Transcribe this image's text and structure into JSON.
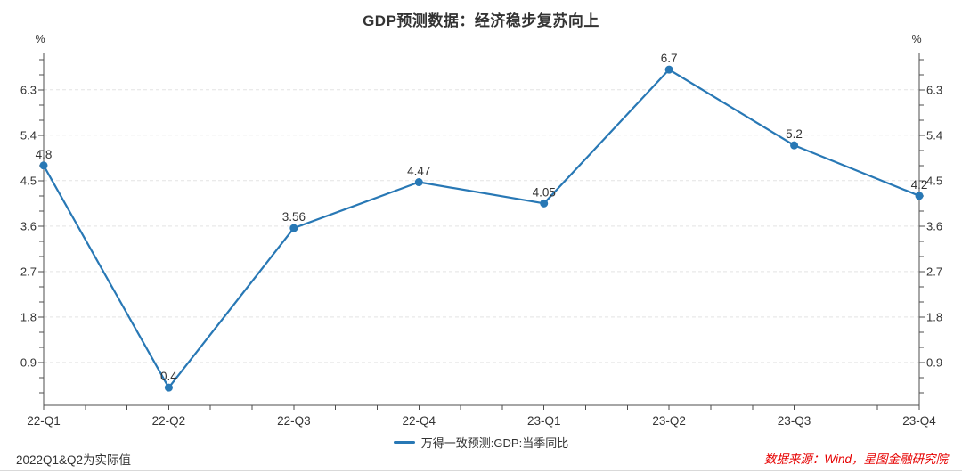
{
  "title": "GDP预测数据：经济稳步复苏向上",
  "chart_data": {
    "type": "line",
    "title": "GDP预测数据：经济稳步复苏向上",
    "categories": [
      "22-Q1",
      "22-Q2",
      "22-Q3",
      "22-Q4",
      "23-Q1",
      "23-Q2",
      "23-Q3",
      "23-Q4"
    ],
    "series": [
      {
        "name": "万得一致预测:GDP:当季同比",
        "values": [
          4.8,
          0.4,
          3.56,
          4.47,
          4.05,
          6.7,
          5.2,
          4.2
        ],
        "value_labels": [
          "4.8",
          "0.4",
          "3.56",
          "4.47",
          "4.05",
          "6.7",
          "5.2",
          "4.2"
        ]
      }
    ],
    "xlabel": "",
    "ylabel": "%",
    "unit_label_left": "%",
    "unit_label_right": "%",
    "ylim": [
      0.05,
      7.02
    ],
    "yticks_major": [
      0.9,
      1.8,
      2.7,
      3.6,
      4.5,
      5.4,
      6.3
    ],
    "ytick_minor_step": 0.3,
    "x_minor_divisions": 3,
    "grid": "horizontal-dashed",
    "dual_y_axis": true,
    "legend_position": "bottom-center"
  },
  "legend": {
    "label": "万得一致预测:GDP:当季同比"
  },
  "footnote": "2022Q1&Q2为实际值",
  "source": "数据来源：Wind，星图金融研究院",
  "colors": {
    "line": "#2878b5",
    "marker": "#2878b5",
    "text": "#333333",
    "axis": "#4d4d4d",
    "grid": "#e3e3e3",
    "source_red": "#e60000"
  }
}
